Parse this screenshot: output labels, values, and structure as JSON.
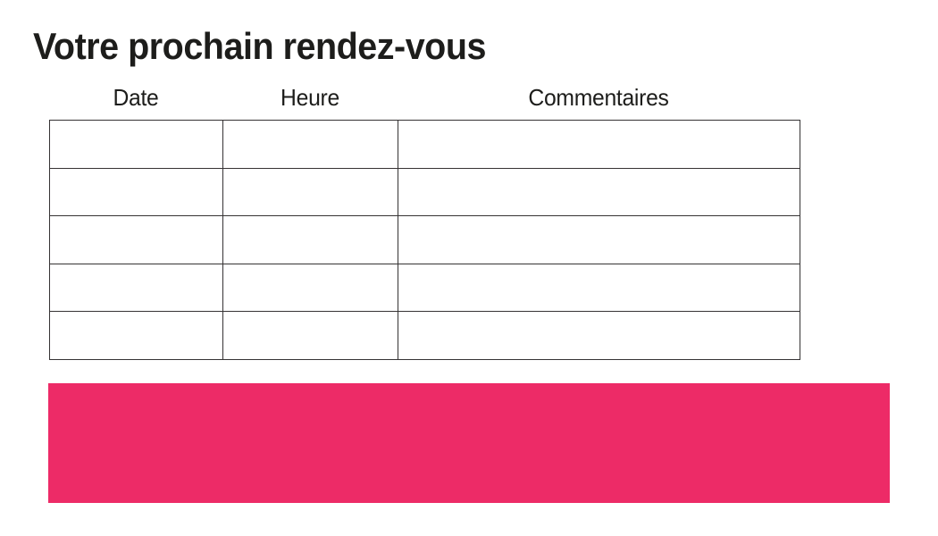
{
  "page": {
    "title": "Votre prochain rendez-vous"
  },
  "table": {
    "headers": [
      "Date",
      "Heure",
      "Commentaires"
    ],
    "rows": [
      [
        "",
        "",
        ""
      ],
      [
        "",
        "",
        ""
      ],
      [
        "",
        "",
        ""
      ],
      [
        "",
        "",
        ""
      ],
      [
        "",
        "",
        ""
      ]
    ]
  },
  "colors": {
    "banner_pink": "#ED2B67",
    "table_border": "#363334",
    "text": "#1d1d1b"
  }
}
